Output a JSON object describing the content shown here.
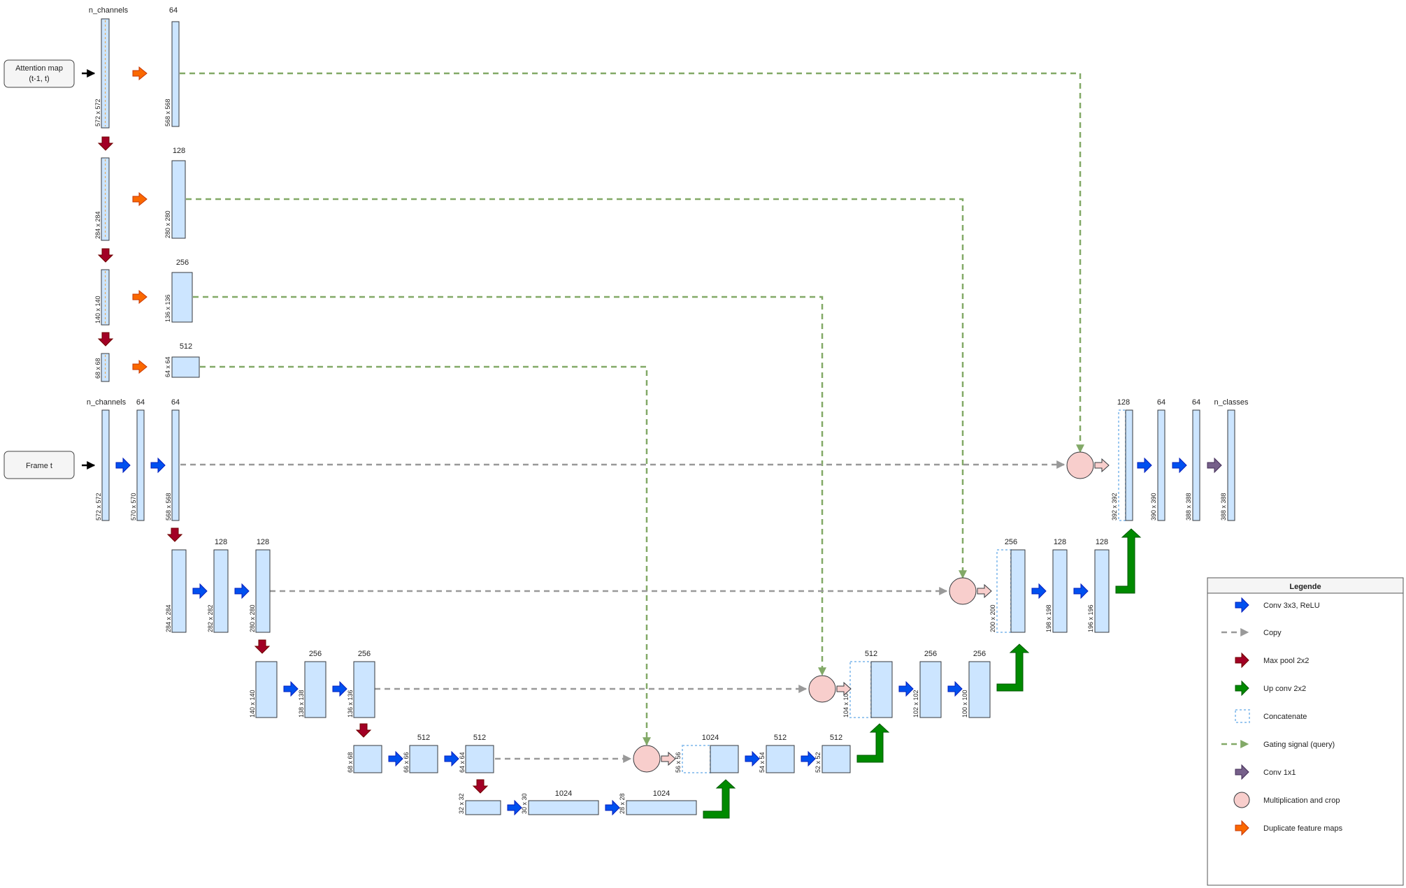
{
  "inputs": {
    "attention_map": [
      "Attention map",
      "(t-1, t)"
    ],
    "frame": "Frame t"
  },
  "labels": {
    "n_channels": "n_channels",
    "n_classes": "n_classes",
    "c64": "64",
    "c128": "128",
    "c256": "256",
    "c512": "512",
    "c1024": "1024",
    "s572": "572 x 572",
    "s568": "568 x 568",
    "s570": "570 x 570",
    "s284": "284 x 284",
    "s280": "280 x 280",
    "s282": "282 x 282",
    "s140": "140 x 140",
    "s136": "136 x 136",
    "s138": "138 x 138",
    "s68": "68 x 68",
    "s64": "64 x 64",
    "s66": "66 x 66",
    "s32": "32 x 32",
    "s30": "30 x 30",
    "s28": "28 x 28",
    "s56": "56 x 56",
    "s54": "54 x 54",
    "s52": "52 x 52",
    "s104": "104 x 104",
    "s102": "102 x 102",
    "s100": "100 x 100",
    "s200": "200 x 200",
    "s198": "198 x 198",
    "s196": "196 x 196",
    "s392": "392 x 392",
    "s390": "390 x 390",
    "s388": "388 x 388"
  },
  "legend": {
    "title": "Legende",
    "items": [
      {
        "icon": "conv-arrow-icon",
        "label": "Conv 3x3, ReLU"
      },
      {
        "icon": "copy-arrow-icon",
        "label": "Copy"
      },
      {
        "icon": "maxpool-arrow-icon",
        "label": "Max pool 2x2"
      },
      {
        "icon": "upconv-arrow-icon",
        "label": "Up conv 2x2"
      },
      {
        "icon": "concatenate-icon",
        "label": "Concatenate"
      },
      {
        "icon": "gating-arrow-icon",
        "label": "Gating signal (query)"
      },
      {
        "icon": "conv1x1-arrow-icon",
        "label": "Conv 1x1"
      },
      {
        "icon": "multiply-crop-icon",
        "label": "Multiplication and crop"
      },
      {
        "icon": "duplicate-arrow-icon",
        "label": "Duplicate feature maps"
      }
    ]
  },
  "colors": {
    "block": "#cce5ff",
    "conv": "#0050ef",
    "copy": "#999999",
    "maxpool": "#a20025",
    "upconv": "#008a00",
    "gating": "#82a967",
    "conv1x1": "#76608a",
    "multiply": "#f8cecc",
    "duplicate": "#fa6800",
    "concat_border": "#9cc8f0"
  }
}
